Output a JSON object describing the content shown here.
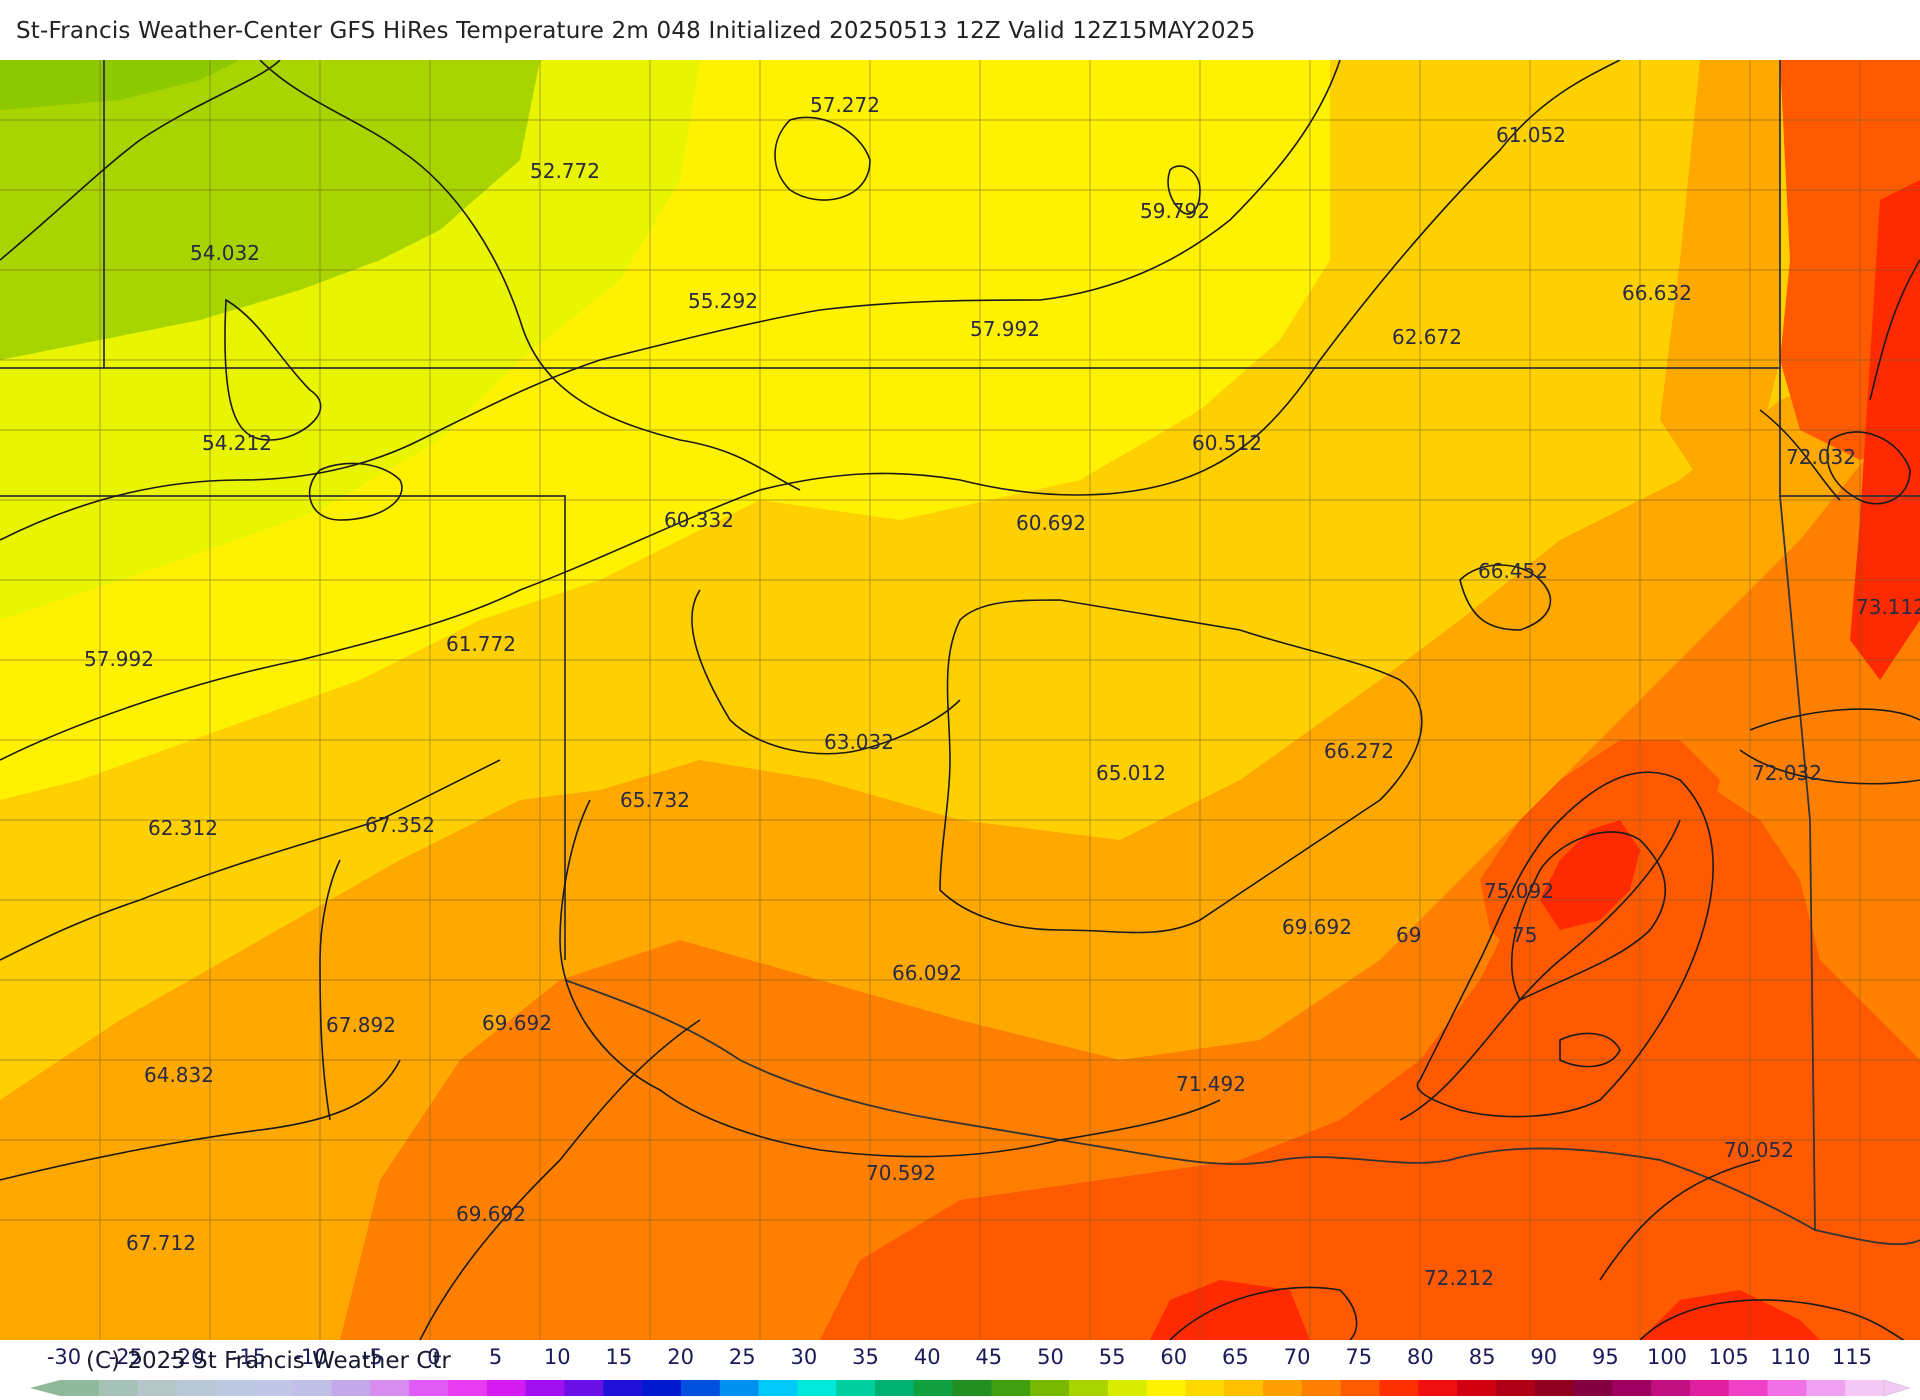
{
  "header": {
    "title": "St-Francis Weather-Center GFS HiRes Temperature 2m  048 Initialized 20250513 12Z Valid 12Z15MAY2025"
  },
  "map": {
    "point_labels": [
      "57.272",
      "52.772",
      "54.032",
      "55.292",
      "57.992",
      "59.792",
      "61.052",
      "62.672",
      "66.632",
      "54.212",
      "60.512",
      "72.032",
      "60.332",
      "60.692",
      "66.452",
      "73.112",
      "57.992",
      "61.772",
      "63.032",
      "65.012",
      "66.272",
      "72.032",
      "62.312",
      "67.352",
      "65.732",
      "75.092",
      "69.692",
      "69",
      "75",
      "66.092",
      "67.892",
      "69.692",
      "64.832",
      "71.492",
      "70.052",
      "70.592",
      "69.692",
      "67.712",
      "72.212"
    ],
    "contour_labels": [
      "69",
      "75"
    ],
    "colors": {
      "t50": "#a8d400",
      "t55": "#e8f400",
      "t60": "#fff200",
      "t65": "#ffd000",
      "t70": "#ffa800",
      "t75": "#ff8000",
      "t80": "#ff5a00",
      "t85": "#ff2a00"
    }
  },
  "colorbar": {
    "ticks": [
      "-30",
      "-25",
      "-20",
      "-15",
      "-10",
      "-5",
      "0",
      "5",
      "10",
      "15",
      "20",
      "25",
      "30",
      "35",
      "40",
      "45",
      "50",
      "55",
      "60",
      "65",
      "70",
      "75",
      "80",
      "85",
      "90",
      "95",
      "100",
      "105",
      "110",
      "115"
    ],
    "colors": [
      "#8fb99b",
      "#a6c2b8",
      "#b4c6c8",
      "#b9c8d6",
      "#bcc8e0",
      "#bfc6e6",
      "#c0bfe8",
      "#c4a8ec",
      "#d88cf0",
      "#e05af4",
      "#e83cf0",
      "#d41cf0",
      "#a010f0",
      "#6a10e6",
      "#2010d8",
      "#0018d0",
      "#0050e0",
      "#0090f0",
      "#00c8f8",
      "#00e8d8",
      "#00d0a0",
      "#00b070",
      "#10a040",
      "#229020",
      "#40a010",
      "#78b800",
      "#a8d400",
      "#d8ec00",
      "#fff200",
      "#ffd800",
      "#ffc000",
      "#ffa000",
      "#ff8000",
      "#ff5a00",
      "#ff3000",
      "#f01010",
      "#d00010",
      "#b00018",
      "#900020",
      "#800040",
      "#a00060",
      "#c01080",
      "#e020a0",
      "#f040c8",
      "#f070e8",
      "#f0a0f0",
      "#f4c8f4"
    ],
    "copyright": "(C) 2025 St Francis Weather Ctr"
  }
}
